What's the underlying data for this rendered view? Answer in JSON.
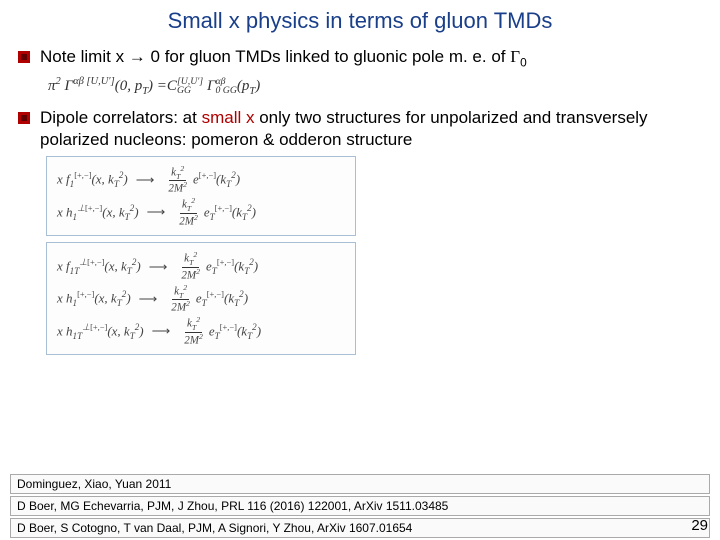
{
  "title": {
    "text": "Small x physics in terms of gluon TMDs",
    "color": "#1a3f8a",
    "fontsize": 22
  },
  "bullets": {
    "bullet_color_outer": "#b00000",
    "bullet_color_inner": "#ffffff",
    "item1_prefix": "Note limit x ",
    "item1_arrow": "→",
    "item1_mid": " 0 for gluon TMDs linked to gluonic pole m. e. of ",
    "item1_gamma": "Γ",
    "item1_sub": "0",
    "item2_prefix": "Dipole correlators: at ",
    "item2_smallx": "small x",
    "item2_suffix": " only two structures for unpolarized and transversely polarized nucleons: pomeron & odderon structure",
    "text_fontsize": 17,
    "text_color": "#000000"
  },
  "equation_main": {
    "lhs_pre": "π",
    "lhs_exp": "2",
    "lhs_mid": " Γ",
    "lhs_sup": "αβ [U,U′]",
    "lhs_args": "(0, p",
    "lhs_argsub": "T",
    "lhs_close": ") = ",
    "rhs_C": "C",
    "rhs_C_sup": "[U,U′]",
    "rhs_C_sub": "GG",
    "rhs_G": " Γ",
    "rhs_G_sup": "αβ",
    "rhs_G_sub": "0 GG",
    "rhs_args": "(p",
    "rhs_argsub": "T",
    "rhs_close": ")",
    "fontsize": 15,
    "color": "#333333"
  },
  "eq_boxes": {
    "border_color": "#a8bfd6",
    "fontsize": 13,
    "color": "#444444",
    "box1": {
      "lines": [
        {
          "fn": "x f",
          "fn_sub": "1",
          "script": "[+,−]",
          "args": "(x, k",
          "argsub": "T",
          "argsup": "2",
          "rhs_e": "e",
          "rhs_script": "[+,−]",
          "rhs_args": "(k",
          "rhs_sub": "T",
          "rhs_sup": "2",
          "frac_num": "k",
          "frac_num_sub": "T",
          "frac_num_sup": "2",
          "frac_den": "2M",
          "frac_den_sup": "2"
        },
        {
          "fn": "x h",
          "fn_sub": "1",
          "fn_sup": "⊥",
          "script": "[+,−]",
          "args": "(x, k",
          "argsub": "T",
          "argsup": "2",
          "rhs_e": "e",
          "rhs_e_sub": "T",
          "rhs_script": "[+,−]",
          "rhs_args": "(k",
          "rhs_sub": "T",
          "rhs_sup": "2",
          "frac_num": "k",
          "frac_num_sub": "T",
          "frac_num_sup": "2",
          "frac_den": "2M",
          "frac_den_sup": "2"
        }
      ]
    },
    "box2": {
      "lines": [
        {
          "fn": "x f",
          "fn_sub": "1T",
          "fn_sup": "⊥",
          "script": "[+,−]",
          "args": "(x, k",
          "argsub": "T",
          "argsup": "2",
          "rhs_e": "e",
          "rhs_e_sub": "T",
          "rhs_script": "[+,−]",
          "rhs_args": "(k",
          "rhs_sub": "T",
          "rhs_sup": "2",
          "frac_num": "k",
          "frac_num_sub": "T",
          "frac_num_sup": "2",
          "frac_den": "2M",
          "frac_den_sup": "2"
        },
        {
          "fn": "x h",
          "fn_sub": "1",
          "script": "[+,−]",
          "args": "(x, k",
          "argsub": "T",
          "argsup": "2",
          "rhs_e": "e",
          "rhs_e_sub": "T",
          "rhs_script": "[+,−]",
          "rhs_args": "(k",
          "rhs_sub": "T",
          "rhs_sup": "2",
          "frac_num": "k",
          "frac_num_sub": "T",
          "frac_num_sup": "2",
          "frac_den": "2M",
          "frac_den_sup": "2"
        },
        {
          "fn": "x h",
          "fn_sub": "1T",
          "fn_sup": "⊥",
          "script": "[+,−]",
          "args": "(x, k",
          "argsub": "T",
          "argsup": "2",
          "rhs_e": "e",
          "rhs_e_sub": "T",
          "rhs_script": "[+,−]",
          "rhs_args": "(k",
          "rhs_sub": "T",
          "rhs_sup": "2",
          "frac_num": "k",
          "frac_num_sub": "T",
          "frac_num_sup": "2",
          "frac_den": "2M",
          "frac_den_sup": "2"
        }
      ]
    }
  },
  "references": {
    "fontsize": 12,
    "color": "#000000",
    "border_color": "#aaaaaa",
    "items": [
      "Dominguez, Xiao, Yuan 2011",
      "D Boer, MG Echevarria, PJM, J Zhou, PRL 116 (2016) 122001, ArXiv 1511.03485",
      "D Boer, S Cotogno, T van Daal, PJM, A Signori, Y Zhou, ArXiv 1607.01654"
    ]
  },
  "page_number": {
    "value": "29",
    "fontsize": 15,
    "color": "#000000"
  }
}
